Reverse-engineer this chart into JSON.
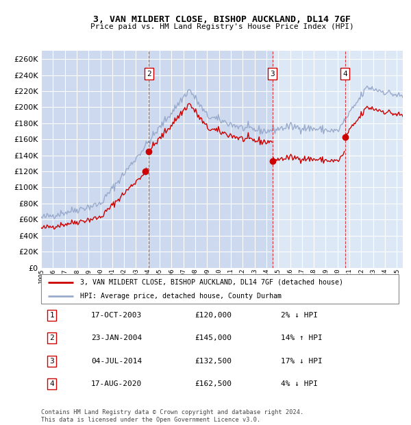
{
  "title": "3, VAN MILDERT CLOSE, BISHOP AUCKLAND, DL14 7GF",
  "subtitle": "Price paid vs. HM Land Registry's House Price Index (HPI)",
  "background_color": "#ffffff",
  "plot_bg_color": "#ccd9ee",
  "plot_bg_color2": "#dce8f5",
  "grid_color": "#ffffff",
  "hpi_color": "#99aacc",
  "sale_color": "#cc0000",
  "legend_line1": "3, VAN MILDERT CLOSE, BISHOP AUCKLAND, DL14 7GF (detached house)",
  "legend_line2": "HPI: Average price, detached house, County Durham",
  "footer": "Contains HM Land Registry data © Crown copyright and database right 2024.\nThis data is licensed under the Open Government Licence v3.0.",
  "sales": [
    {
      "num": 1,
      "date_label": "17-OCT-2003",
      "date_year": 2003.79,
      "price": 120000,
      "pct": "2%",
      "dir": "↓"
    },
    {
      "num": 2,
      "date_label": "23-JAN-2004",
      "date_year": 2004.07,
      "price": 145000,
      "pct": "14%",
      "dir": "↑"
    },
    {
      "num": 3,
      "date_label": "04-JUL-2014",
      "date_year": 2014.5,
      "price": 132500,
      "pct": "17%",
      "dir": "↓"
    },
    {
      "num": 4,
      "date_label": "17-AUG-2020",
      "date_year": 2020.63,
      "price": 162500,
      "pct": "4%",
      "dir": "↓"
    }
  ],
  "xmin": 1995.0,
  "xmax": 2025.5,
  "ymin": 0,
  "ymax": 270000,
  "yticks": [
    0,
    20000,
    40000,
    60000,
    80000,
    100000,
    120000,
    140000,
    160000,
    180000,
    200000,
    220000,
    240000,
    260000
  ],
  "xticks": [
    1995,
    1996,
    1997,
    1998,
    1999,
    2000,
    2001,
    2002,
    2003,
    2004,
    2005,
    2006,
    2007,
    2008,
    2009,
    2010,
    2011,
    2012,
    2013,
    2014,
    2015,
    2016,
    2017,
    2018,
    2019,
    2020,
    2021,
    2022,
    2023,
    2024,
    2025
  ]
}
